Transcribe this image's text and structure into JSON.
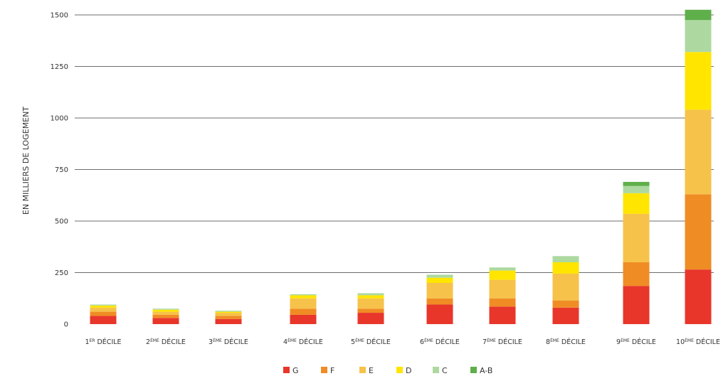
{
  "chart_data": {
    "type": "bar",
    "stacked": true,
    "ylabel": "EN MILLIERS DE LOGEMENT",
    "ylim": [
      0,
      1500
    ],
    "yticks": [
      0,
      250,
      500,
      750,
      1000,
      1250,
      1500
    ],
    "grid": true,
    "legend_position": "bottom",
    "categories": [
      {
        "num": "1",
        "sup": "ER",
        "word": "DÉCILE"
      },
      {
        "num": "2",
        "sup": "ÈME",
        "word": "DÉCILE"
      },
      {
        "num": "3",
        "sup": "ÈME",
        "word": "DÉCILE"
      },
      {
        "num": "4",
        "sup": "ÈME",
        "word": "DÉCILE"
      },
      {
        "num": "5",
        "sup": "ÈME",
        "word": "DÉCILE"
      },
      {
        "num": "6",
        "sup": "ÈME",
        "word": "DÉCILE"
      },
      {
        "num": "7",
        "sup": "ÈME",
        "word": "DÉCILE"
      },
      {
        "num": "8",
        "sup": "ÈME",
        "word": "DÉCILE"
      },
      {
        "num": "9",
        "sup": "ÈME",
        "word": "DÉCILE"
      },
      {
        "num": "10",
        "sup": "ÈME",
        "word": "DÉCILE"
      }
    ],
    "series": [
      {
        "name": "G",
        "color": "#e8362b",
        "values": [
          40,
          30,
          25,
          45,
          55,
          95,
          85,
          80,
          185,
          265
        ]
      },
      {
        "name": "F",
        "color": "#f08c24",
        "values": [
          20,
          15,
          15,
          30,
          20,
          30,
          40,
          35,
          115,
          365
        ]
      },
      {
        "name": "E",
        "color": "#f6c24a",
        "values": [
          20,
          15,
          15,
          50,
          50,
          75,
          90,
          130,
          235,
          410
        ]
      },
      {
        "name": "D",
        "color": "#ffe500",
        "values": [
          10,
          10,
          5,
          15,
          15,
          25,
          45,
          55,
          100,
          280
        ]
      },
      {
        "name": "C",
        "color": "#add9a0",
        "values": [
          5,
          5,
          5,
          5,
          10,
          15,
          15,
          30,
          35,
          155
        ]
      },
      {
        "name": "A-B",
        "color": "#5faf4a",
        "values": [
          0,
          0,
          0,
          0,
          0,
          0,
          0,
          0,
          20,
          50
        ]
      }
    ]
  }
}
